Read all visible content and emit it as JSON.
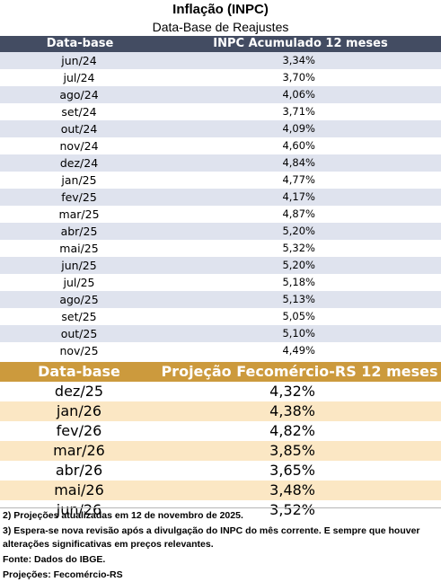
{
  "title": "Inflação (INPC)",
  "subtitle": "Data-Base de Reajustes",
  "historical": {
    "header": {
      "date": "Data-base",
      "value": "INPC Acumulado 12 meses"
    },
    "rows": [
      {
        "date": "jun/24",
        "value": "3,34%"
      },
      {
        "date": "jul/24",
        "value": "3,70%"
      },
      {
        "date": "ago/24",
        "value": "4,06%"
      },
      {
        "date": "set/24",
        "value": "3,71%"
      },
      {
        "date": "out/24",
        "value": "4,09%"
      },
      {
        "date": "nov/24",
        "value": "4,60%"
      },
      {
        "date": "dez/24",
        "value": "4,84%"
      },
      {
        "date": "jan/25",
        "value": "4,77%"
      },
      {
        "date": "fev/25",
        "value": "4,17%"
      },
      {
        "date": "mar/25",
        "value": "4,87%"
      },
      {
        "date": "abr/25",
        "value": "5,20%"
      },
      {
        "date": "mai/25",
        "value": "5,32%"
      },
      {
        "date": "jun/25",
        "value": "5,20%"
      },
      {
        "date": "jul/25",
        "value": "5,18%"
      },
      {
        "date": "ago/25",
        "value": "5,13%"
      },
      {
        "date": "set/25",
        "value": "5,05%"
      },
      {
        "date": "out/25",
        "value": "5,10%"
      },
      {
        "date": "nov/25",
        "value": "4,49%"
      }
    ]
  },
  "projection": {
    "header": {
      "date": "Data-base",
      "value": "Projeção Fecomércio-RS 12 meses"
    },
    "rows": [
      {
        "date": "dez/25",
        "value": "4,32%"
      },
      {
        "date": "jan/26",
        "value": "4,38%"
      },
      {
        "date": "fev/26",
        "value": "4,82%"
      },
      {
        "date": "mar/26",
        "value": "3,85%"
      },
      {
        "date": "abr/26",
        "value": "3,65%"
      },
      {
        "date": "mai/26",
        "value": "3,48%"
      },
      {
        "date": "jun/26",
        "value": "3,52%"
      }
    ]
  },
  "notes": [
    "2) Projeções atualizadas em 12 de novembro de 2025.",
    "3) Espera-se nova revisão após a divulgação do INPC do mês corrente. E sempre que houver alterações significativas em preços relevantes.",
    "Fonte: Dados do IBGE.",
    "Projeções: Fecomércio-RS"
  ],
  "colors": {
    "historical_header": "#434c62",
    "historical_stripe": "#dfe3ee",
    "projection_header": "#cc9a3d",
    "projection_stripe": "#fbe7c4"
  }
}
